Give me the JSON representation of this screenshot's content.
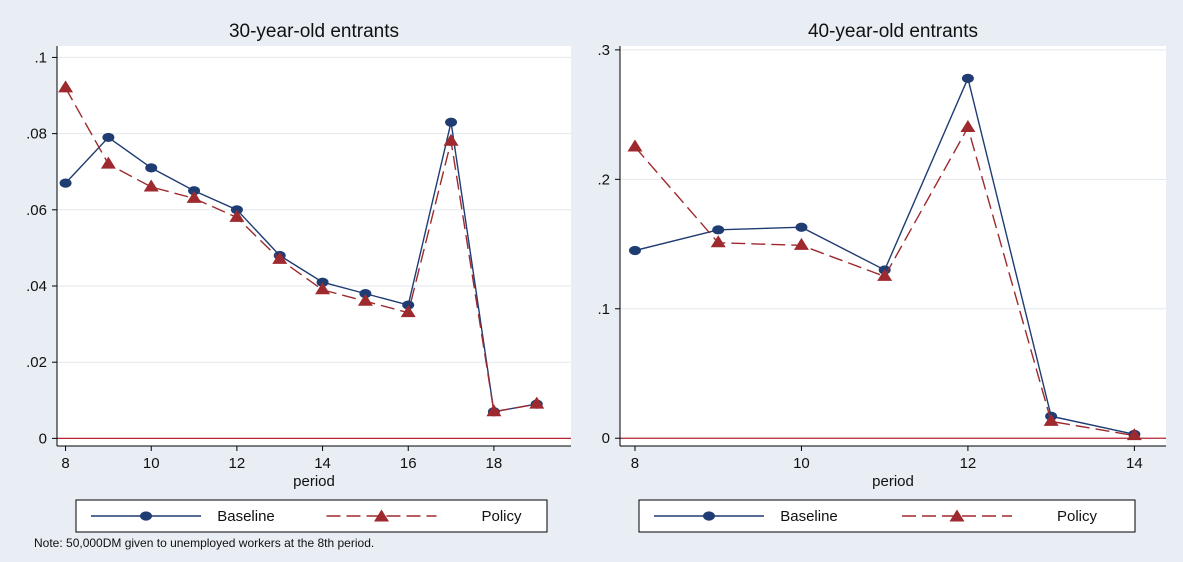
{
  "note": "Note: 50,000DM given to unemployed workers at the 8th period.",
  "colors": {
    "background": "#e9eef4",
    "plot_area": "#ffffff",
    "grid": "#e3e8ee",
    "baseline": "#1f3c73",
    "policy": "#9e2a2f",
    "zero_line": "#b5252f"
  },
  "chart_data": [
    {
      "type": "line",
      "title": "30-year-old entrants",
      "xlabel": "period",
      "ylabel": "",
      "xlim": [
        7.8,
        19.8
      ],
      "ylim": [
        -0.002,
        0.103
      ],
      "xticks": [
        8,
        10,
        12,
        14,
        16,
        18
      ],
      "yticks": [
        0,
        0.02,
        0.04,
        0.06,
        0.08,
        0.1
      ],
      "ytick_labels": [
        "0",
        ".02",
        ".04",
        ".06",
        ".08",
        ".1"
      ],
      "grid": true,
      "reference_line_y": 0,
      "legend_position": "bottom",
      "x": [
        8,
        9,
        10,
        11,
        12,
        13,
        14,
        15,
        16,
        17,
        18,
        19
      ],
      "series": [
        {
          "name": "Baseline",
          "marker": "circle",
          "style": "solid",
          "values": [
            0.067,
            0.079,
            0.071,
            0.065,
            0.06,
            0.048,
            0.041,
            0.038,
            0.035,
            0.083,
            0.007,
            0.009
          ]
        },
        {
          "name": "Policy",
          "marker": "triangle",
          "style": "dashed",
          "values": [
            0.092,
            0.072,
            0.066,
            0.063,
            0.058,
            0.047,
            0.039,
            0.036,
            0.033,
            0.078,
            0.007,
            0.009
          ]
        }
      ]
    },
    {
      "type": "line",
      "title": "40-year-old entrants",
      "xlabel": "period",
      "ylabel": "",
      "xlim": [
        7.82,
        14.38
      ],
      "ylim": [
        -0.006,
        0.303
      ],
      "xticks": [
        8,
        10,
        12,
        14
      ],
      "yticks": [
        0,
        0.1,
        0.2,
        0.3
      ],
      "ytick_labels": [
        "0",
        ".1",
        ".2",
        ".3"
      ],
      "grid": true,
      "reference_line_y": 0,
      "legend_position": "bottom",
      "x": [
        8,
        9,
        10,
        11,
        12,
        13,
        14
      ],
      "series": [
        {
          "name": "Baseline",
          "marker": "circle",
          "style": "solid",
          "values": [
            0.145,
            0.161,
            0.163,
            0.13,
            0.278,
            0.017,
            0.003
          ]
        },
        {
          "name": "Policy",
          "marker": "triangle",
          "style": "dashed",
          "values": [
            0.225,
            0.151,
            0.149,
            0.125,
            0.24,
            0.013,
            0.002
          ]
        }
      ]
    }
  ]
}
